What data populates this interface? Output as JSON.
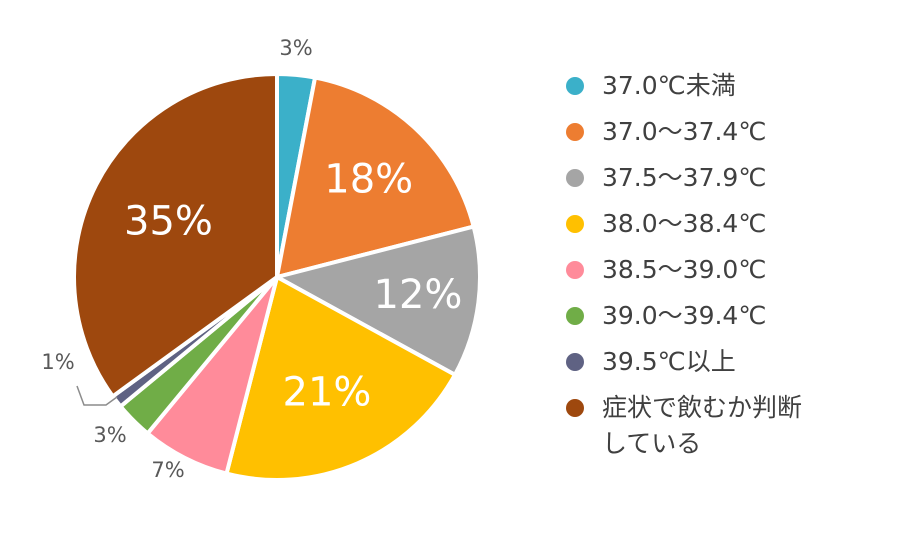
{
  "chart_data": {
    "type": "pie",
    "start_angle_deg": 0,
    "direction": "clockwise",
    "legend_position": "right",
    "slices": [
      {
        "label": "37.0℃未満",
        "value": 3,
        "data_label": "3%",
        "color": "#3bb0c9"
      },
      {
        "label": "37.0〜37.4℃",
        "value": 18,
        "data_label": "18%",
        "color": "#ed7d31"
      },
      {
        "label": "37.5〜37.9℃",
        "value": 12,
        "data_label": "12%",
        "color": "#a5a5a5"
      },
      {
        "label": "38.0〜38.4℃",
        "value": 21,
        "data_label": "21%",
        "color": "#ffc000"
      },
      {
        "label": "38.5〜39.0℃",
        "value": 7,
        "data_label": "7%",
        "color": "#ff8b9a"
      },
      {
        "label": "39.0〜39.4℃",
        "value": 3,
        "data_label": "3%",
        "color": "#70ad47"
      },
      {
        "label": "39.5℃以上",
        "value": 1,
        "data_label": "1%",
        "color": "#5f6283"
      },
      {
        "label": "症状で飲むか判断している",
        "label_lines": [
          "症状で飲むか判断",
          "している"
        ],
        "value": 35,
        "data_label": "35%",
        "color": "#9e480e"
      }
    ]
  }
}
